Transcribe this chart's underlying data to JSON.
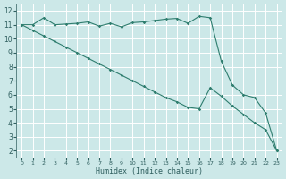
{
  "xlabel": "Humidex (Indice chaleur)",
  "bg_color": "#cce8e8",
  "grid_color": "#ffffff",
  "line_color": "#2e7d6e",
  "xlim": [
    -0.5,
    23.5
  ],
  "ylim": [
    1.5,
    12.5
  ],
  "yticks": [
    2,
    3,
    4,
    5,
    6,
    7,
    8,
    9,
    10,
    11,
    12
  ],
  "xticks": [
    0,
    1,
    2,
    3,
    4,
    5,
    6,
    7,
    8,
    9,
    10,
    11,
    12,
    13,
    14,
    15,
    16,
    17,
    18,
    19,
    20,
    21,
    22,
    23
  ],
  "line1_x": [
    0,
    1,
    2,
    3,
    4,
    5,
    6,
    7,
    8,
    9,
    10,
    11,
    12,
    13,
    14,
    15,
    16,
    17,
    18,
    19,
    20,
    21,
    22,
    23
  ],
  "line1_y": [
    11.0,
    11.0,
    11.5,
    11.0,
    11.05,
    11.1,
    11.2,
    10.9,
    11.1,
    10.85,
    11.15,
    11.2,
    11.3,
    11.4,
    11.45,
    11.1,
    11.6,
    11.5,
    8.4,
    6.7,
    6.0,
    5.8,
    4.7,
    2.0
  ],
  "line2_x": [
    0,
    1,
    2,
    3,
    4,
    5,
    6,
    7,
    8,
    9,
    10,
    11,
    12,
    13,
    14,
    15,
    16,
    17,
    18,
    19,
    20,
    21,
    22,
    23
  ],
  "line2_y": [
    11.0,
    10.6,
    10.2,
    9.8,
    9.4,
    9.0,
    8.6,
    8.2,
    7.8,
    7.4,
    7.0,
    6.6,
    6.2,
    5.8,
    5.5,
    5.1,
    5.0,
    6.5,
    5.9,
    5.2,
    4.6,
    4.0,
    3.5,
    2.0
  ]
}
